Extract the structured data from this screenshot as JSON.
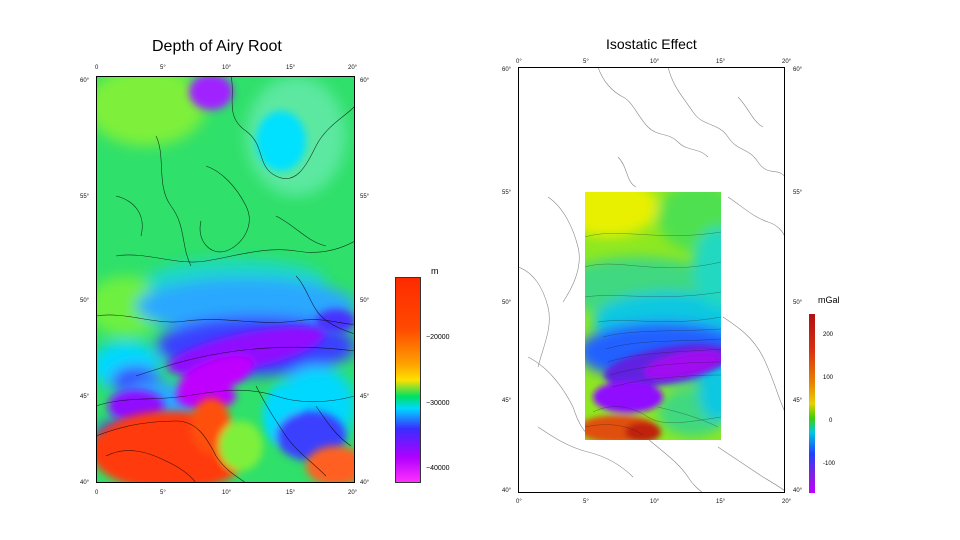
{
  "left_panel": {
    "title": "Depth of Airy Root",
    "top_ticks": [
      "0",
      "5°",
      "10°",
      "15°",
      "20°"
    ],
    "bottom_ticks": [
      "0",
      "5°",
      "10°",
      "15°",
      "20°"
    ],
    "left_ticks": [
      "60°",
      "55°",
      "50°",
      "45°",
      "40°"
    ],
    "right_ticks": [
      "60°",
      "55°",
      "50°",
      "45°",
      "40°"
    ],
    "colorbar": {
      "unit": "m",
      "labels": [
        "−20000",
        "−30000",
        "−40000"
      ],
      "colors": [
        "#ff2a00",
        "#ff7a00",
        "#ffd200",
        "#00e060",
        "#00d8ff",
        "#3a2cff",
        "#b000ff",
        "#ff30ff"
      ]
    }
  },
  "right_panel": {
    "title": "Isostatic Effect",
    "top_ticks": [
      "0°",
      "5°",
      "10°",
      "15°",
      "20°"
    ],
    "bottom_ticks": [
      "0°",
      "5°",
      "10°",
      "15°",
      "20°"
    ],
    "left_ticks": [
      "60°",
      "55°",
      "50°",
      "45°",
      "40°"
    ],
    "right_ticks": [
      "60°",
      "55°",
      "50°",
      "45°",
      "40°"
    ],
    "colorbar": {
      "unit": "mGal",
      "labels": [
        "200",
        "100",
        "0",
        "-100"
      ],
      "colors": [
        "#b01010",
        "#e05010",
        "#e8a000",
        "#c8e000",
        "#00d000",
        "#00c8e0",
        "#2040ff",
        "#8020e0",
        "#c000ff"
      ]
    }
  }
}
